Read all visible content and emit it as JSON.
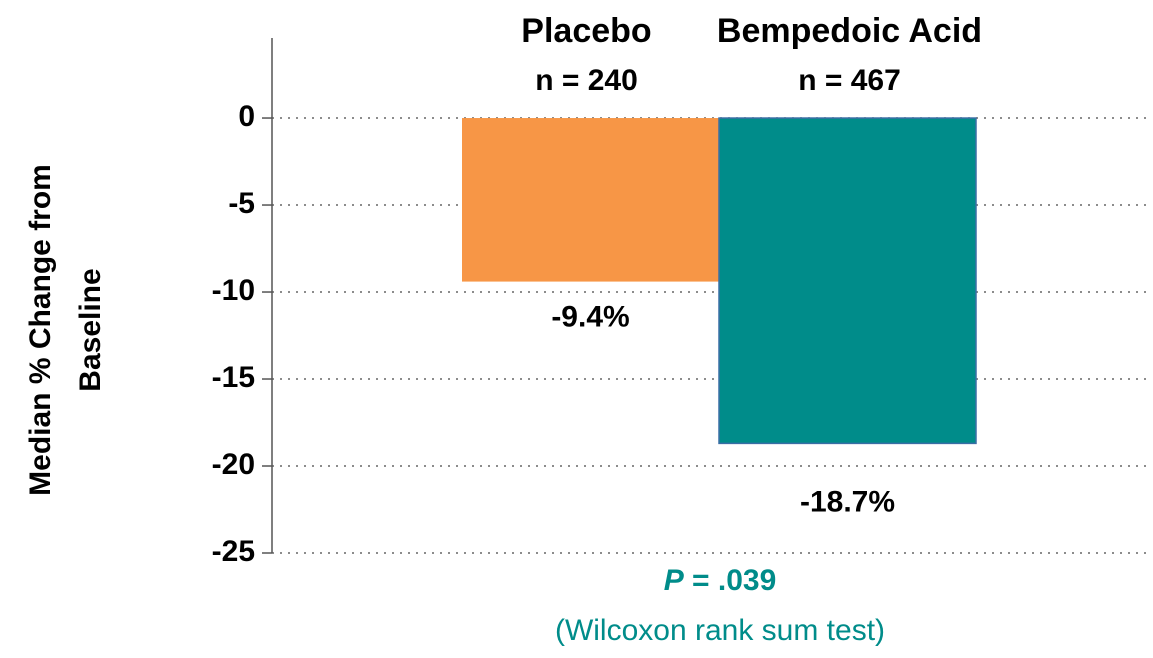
{
  "chart_data": {
    "type": "bar",
    "categories": [
      "Placebo",
      "Bempedoic Acid"
    ],
    "category_sublabels": [
      "n = 240",
      "n = 467"
    ],
    "values": [
      -9.4,
      -18.7
    ],
    "value_labels": [
      "-9.4%",
      "-18.7%"
    ],
    "colors": [
      "#f79646",
      "#008c8a"
    ],
    "y_label": [
      "Median % Change from",
      "Baseline"
    ],
    "ylim": [
      -25,
      4.6
    ],
    "yticks": [
      0,
      -5,
      -10,
      -15,
      -20,
      -25
    ],
    "grid": true,
    "annotations": [
      "P",
      "= .039",
      "(Wilcoxon rank sum test)"
    ]
  }
}
